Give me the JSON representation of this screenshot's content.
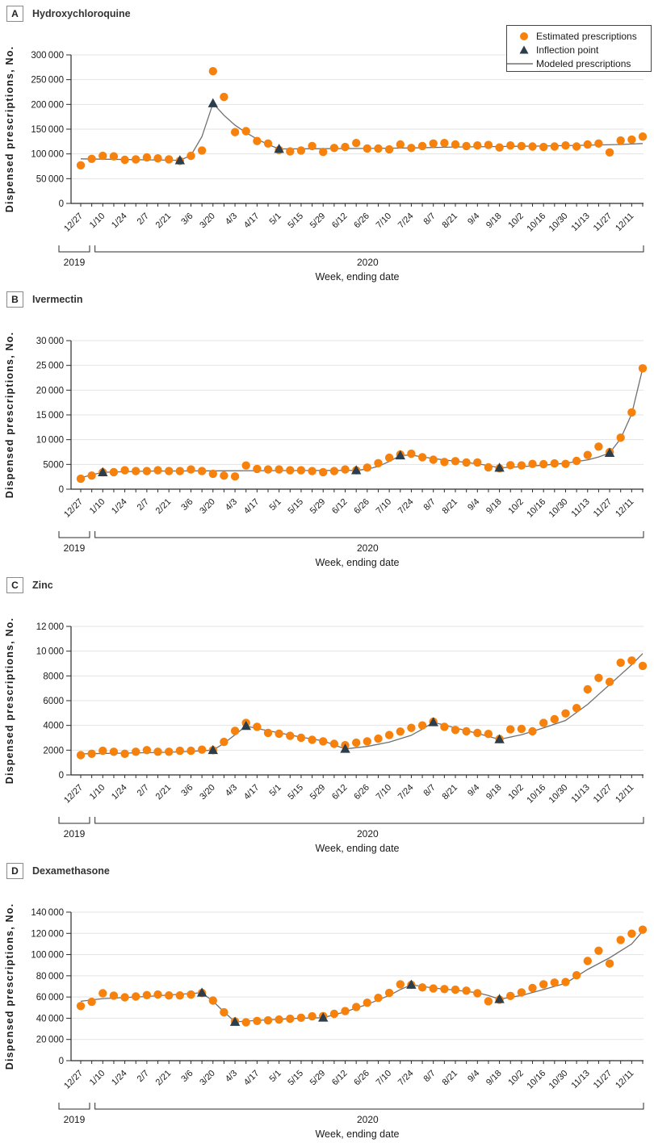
{
  "figure": {
    "ylabel": "Dispensed prescriptions, No.",
    "xlabel": "Week, ending date",
    "year_left": "2019",
    "year_right": "2020"
  },
  "legend": {
    "items": [
      {
        "label": "Estimated prescriptions",
        "marker": "circle"
      },
      {
        "label": "Inflection point",
        "marker": "triangle"
      },
      {
        "label": "Modeled prescriptions",
        "marker": "line"
      }
    ]
  },
  "colors": {
    "estimated_orange": "#F6820D",
    "inflection_dark": "#2B3E4E",
    "model_line_gray": "#707070",
    "gridline": "#E3E3E3",
    "axis": "#2b2b2b",
    "text": "#1a1a1a"
  },
  "x_labels": [
    "12/27",
    "1/10",
    "1/24",
    "2/7",
    "2/21",
    "3/6",
    "3/20",
    "4/3",
    "4/17",
    "5/1",
    "5/15",
    "5/29",
    "6/12",
    "6/26",
    "7/10",
    "7/24",
    "8/7",
    "8/21",
    "9/4",
    "9/18",
    "10/2",
    "10/16",
    "10/30",
    "11/13",
    "11/27",
    "12/11"
  ],
  "chart_data": [
    {
      "panel": "A",
      "title": "Hydroxychloroquine",
      "type": "scatter",
      "ylim": [
        0,
        300000
      ],
      "ystep": 50000,
      "show_legend": true,
      "estimated": [
        77000,
        90000,
        96000,
        95000,
        88000,
        89000,
        93000,
        91000,
        89000,
        86000,
        96000,
        107000,
        267000,
        215000,
        144000,
        146000,
        126000,
        121000,
        108000,
        105000,
        107000,
        116000,
        104000,
        112000,
        114000,
        122000,
        111000,
        111000,
        109000,
        119000,
        112000,
        116000,
        121000,
        122000,
        119000,
        116000,
        117000,
        118000,
        113000,
        117000,
        116000,
        115000,
        114000,
        115000,
        117000,
        115000,
        119000,
        121000,
        103000,
        127000,
        129000,
        135000
      ],
      "modeled_knots": [
        [
          0,
          90000
        ],
        [
          9,
          87000
        ],
        [
          10,
          97000
        ],
        [
          11,
          135000
        ],
        [
          12,
          202000
        ],
        [
          13,
          178000
        ],
        [
          14,
          158000
        ],
        [
          15,
          143000
        ],
        [
          16,
          130000
        ],
        [
          17,
          119000
        ],
        [
          18,
          110000
        ],
        [
          22,
          110500
        ],
        [
          26,
          111000
        ],
        [
          30,
          112000
        ],
        [
          34,
          114000
        ],
        [
          38,
          115000
        ],
        [
          42,
          116000
        ],
        [
          46,
          117500
        ],
        [
          49,
          119000
        ],
        [
          51,
          121000
        ]
      ],
      "inflections": [
        [
          9,
          87000
        ],
        [
          12,
          202000
        ],
        [
          18,
          110000
        ]
      ]
    },
    {
      "panel": "B",
      "title": "Ivermectin",
      "type": "scatter",
      "ylim": [
        0,
        30000
      ],
      "ystep": 5000,
      "show_legend": false,
      "estimated": [
        2100,
        2740,
        3400,
        3440,
        3820,
        3660,
        3660,
        3820,
        3660,
        3660,
        3980,
        3660,
        3120,
        2740,
        2580,
        4780,
        4090,
        3980,
        3980,
        3820,
        3820,
        3660,
        3440,
        3660,
        3980,
        3800,
        4360,
        5250,
        6350,
        7000,
        7150,
        6450,
        5950,
        5500,
        5650,
        5400,
        5400,
        4400,
        4200,
        4850,
        4800,
        5100,
        5050,
        5200,
        5100,
        5700,
        6900,
        8600,
        7500,
        10400,
        15500,
        24400
      ],
      "modeled_knots": [
        [
          0,
          2300
        ],
        [
          1,
          2900
        ],
        [
          2,
          3400
        ],
        [
          6,
          3650
        ],
        [
          12,
          3700
        ],
        [
          18,
          3750
        ],
        [
          25,
          3800
        ],
        [
          26,
          4050
        ],
        [
          27,
          4600
        ],
        [
          28,
          5600
        ],
        [
          29,
          6800
        ],
        [
          30,
          6900
        ],
        [
          31,
          6500
        ],
        [
          33,
          5900
        ],
        [
          35,
          5400
        ],
        [
          37,
          4800
        ],
        [
          38,
          4300
        ],
        [
          40,
          4550
        ],
        [
          42,
          4850
        ],
        [
          44,
          5250
        ],
        [
          46,
          5900
        ],
        [
          47,
          6500
        ],
        [
          48,
          7300
        ],
        [
          49,
          10200
        ],
        [
          50,
          15200
        ],
        [
          51,
          24400
        ]
      ],
      "inflections": [
        [
          2,
          3400
        ],
        [
          25,
          3800
        ],
        [
          29,
          6800
        ],
        [
          38,
          4300
        ],
        [
          48,
          7300
        ]
      ]
    },
    {
      "panel": "C",
      "title": "Zinc",
      "type": "scatter",
      "ylim": [
        0,
        12000
      ],
      "ystep": 2000,
      "show_legend": false,
      "estimated": [
        1600,
        1710,
        1950,
        1870,
        1710,
        1870,
        2000,
        1870,
        1870,
        1950,
        1950,
        2040,
        2000,
        2670,
        3560,
        4200,
        3890,
        3400,
        3330,
        3155,
        3000,
        2840,
        2710,
        2510,
        2400,
        2600,
        2710,
        2930,
        3220,
        3500,
        3800,
        4000,
        4300,
        3890,
        3630,
        3520,
        3390,
        3310,
        2900,
        3680,
        3720,
        3520,
        4200,
        4500,
        4970,
        5400,
        6910,
        7840,
        7520,
        9070,
        9240,
        8810
      ],
      "modeled_knots": [
        [
          0,
          1700
        ],
        [
          4,
          1760
        ],
        [
          8,
          1830
        ],
        [
          10,
          1900
        ],
        [
          12,
          2000
        ],
        [
          13,
          2550
        ],
        [
          14,
          3250
        ],
        [
          15,
          3950
        ],
        [
          16,
          3750
        ],
        [
          18,
          3400
        ],
        [
          20,
          3050
        ],
        [
          22,
          2750
        ],
        [
          24,
          2100
        ],
        [
          26,
          2300
        ],
        [
          28,
          2650
        ],
        [
          30,
          3200
        ],
        [
          31,
          3700
        ],
        [
          32,
          4250
        ],
        [
          34,
          3800
        ],
        [
          36,
          3350
        ],
        [
          38,
          2870
        ],
        [
          40,
          3250
        ],
        [
          42,
          3800
        ],
        [
          44,
          4400
        ],
        [
          46,
          5700
        ],
        [
          47,
          6500
        ],
        [
          48,
          7300
        ],
        [
          49,
          8100
        ],
        [
          50,
          8900
        ],
        [
          51,
          9800
        ]
      ],
      "inflections": [
        [
          12,
          2000
        ],
        [
          15,
          3950
        ],
        [
          24,
          2100
        ],
        [
          32,
          4250
        ],
        [
          38,
          2870
        ]
      ]
    },
    {
      "panel": "D",
      "title": "Dexamethasone",
      "type": "scatter",
      "ylim": [
        0,
        140000
      ],
      "ystep": 20000,
      "show_legend": false,
      "estimated": [
        51500,
        55500,
        63500,
        61300,
        59700,
        60500,
        61800,
        62300,
        61500,
        61500,
        62300,
        63800,
        56700,
        45600,
        37000,
        36200,
        37400,
        38000,
        38700,
        39500,
        40500,
        41800,
        42000,
        44100,
        46700,
        50500,
        54600,
        59200,
        63800,
        72000,
        71500,
        69000,
        68000,
        67500,
        66900,
        66000,
        63500,
        56000,
        57500,
        61000,
        64400,
        68500,
        72000,
        73600,
        74100,
        80500,
        94000,
        103600,
        91500,
        113800,
        119700,
        123500
      ],
      "modeled_knots": [
        [
          0,
          56000
        ],
        [
          2,
          58500
        ],
        [
          6,
          60500
        ],
        [
          11,
          64000
        ],
        [
          12,
          56000
        ],
        [
          13,
          46000
        ],
        [
          14,
          36500
        ],
        [
          16,
          38000
        ],
        [
          18,
          39000
        ],
        [
          20,
          40000
        ],
        [
          22,
          40500
        ],
        [
          24,
          46000
        ],
        [
          26,
          53000
        ],
        [
          28,
          61500
        ],
        [
          29,
          67000
        ],
        [
          30,
          71500
        ],
        [
          32,
          68500
        ],
        [
          34,
          66500
        ],
        [
          36,
          64000
        ],
        [
          37,
          61500
        ],
        [
          38,
          58000
        ],
        [
          40,
          61500
        ],
        [
          42,
          67000
        ],
        [
          44,
          73000
        ],
        [
          46,
          86000
        ],
        [
          48,
          97000
        ],
        [
          50,
          110000
        ],
        [
          51,
          122000
        ]
      ],
      "inflections": [
        [
          11,
          64000
        ],
        [
          14,
          36500
        ],
        [
          22,
          40500
        ],
        [
          30,
          71500
        ],
        [
          38,
          58000
        ]
      ]
    }
  ]
}
